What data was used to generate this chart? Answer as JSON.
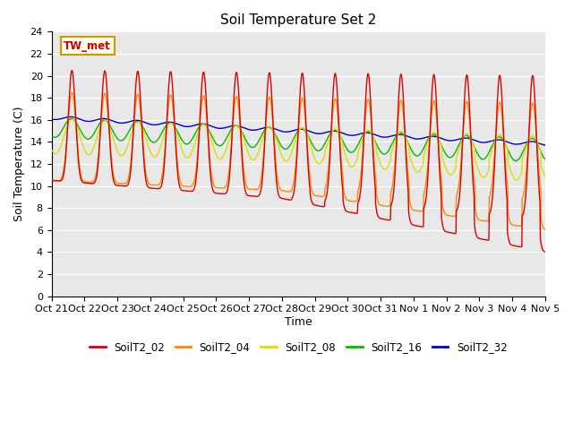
{
  "title": "Soil Temperature Set 2",
  "xlabel": "Time",
  "ylabel": "Soil Temperature (C)",
  "ylim": [
    0,
    24
  ],
  "yticks": [
    0,
    2,
    4,
    6,
    8,
    10,
    12,
    14,
    16,
    18,
    20,
    22,
    24
  ],
  "bg_color": "#e8e8e8",
  "annotation_text": "TW_met",
  "annotation_bg": "#ffffee",
  "annotation_border": "#cc9900",
  "annotation_text_color": "#cc0000",
  "colors": {
    "SoilT2_02": "#dd0000",
    "SoilT2_04": "#ff8800",
    "SoilT2_08": "#dddd00",
    "SoilT2_16": "#00bb00",
    "SoilT2_32": "#0000cc"
  },
  "x_tick_labels": [
    "Oct 21",
    "Oct 22",
    "Oct 23",
    "Oct 24",
    "Oct 25",
    "Oct 26",
    "Oct 27",
    "Oct 28",
    "Oct 29",
    "Oct 30",
    "Oct 31",
    "Nov 1",
    "Nov 2",
    "Nov 3",
    "Nov 4",
    "Nov 5"
  ],
  "n_days": 15,
  "n_per_day": 96,
  "line_width": 1.0,
  "figsize": [
    6.4,
    4.8
  ],
  "dpi": 100
}
